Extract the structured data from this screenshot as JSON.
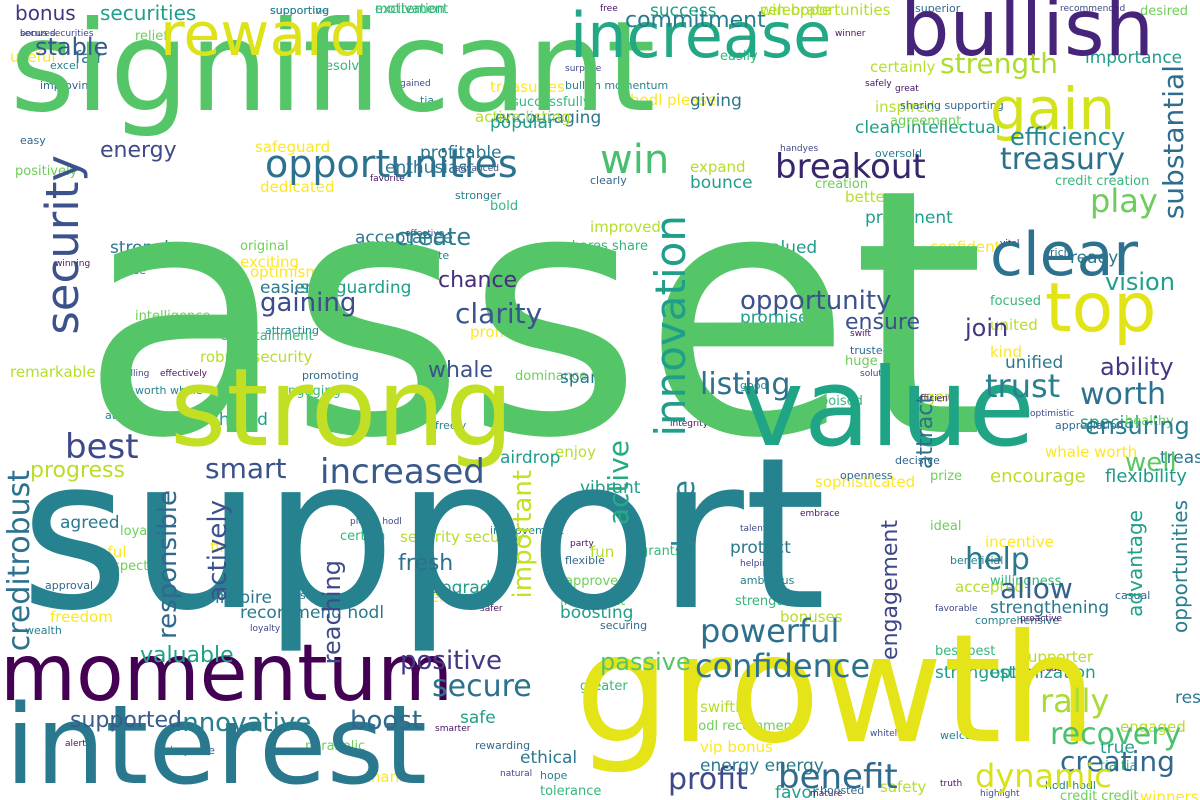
{
  "palette": {
    "purple": "#471164",
    "indigo": "#3e4989",
    "blue": "#31688e",
    "teal": "#26828e",
    "cyan": "#1f9e89",
    "green": "#35b779",
    "lime": "#6ece58",
    "yellowgreen": "#b5de2b",
    "yellow": "#e0e31a",
    "brightyellow": "#fde725"
  },
  "words": [
    {
      "text": "asset",
      "color": "#55c667"
    },
    {
      "text": "support",
      "color": "#26828e"
    },
    {
      "text": "significant",
      "color": "#55c667"
    },
    {
      "text": "growth",
      "color": "#e5e419"
    },
    {
      "text": "interest",
      "color": "#2a788e"
    },
    {
      "text": "strong",
      "color": "#c2df23"
    },
    {
      "text": "value",
      "color": "#20a486"
    },
    {
      "text": "momentum",
      "color": "#440154"
    },
    {
      "text": "bullish",
      "color": "#46247a"
    },
    {
      "text": "increase",
      "color": "#22a884"
    },
    {
      "text": "reward",
      "color": "#dde318"
    },
    {
      "text": "gain",
      "color": "#d2e21b"
    },
    {
      "text": "top",
      "color": "#e3e418"
    },
    {
      "text": "clear",
      "color": "#2c728e"
    },
    {
      "text": "innovation",
      "color": "#1f9f88"
    },
    {
      "text": "security",
      "color": "#3b528b"
    },
    {
      "text": "opportunities",
      "color": "#2c728e"
    },
    {
      "text": "win",
      "color": "#46c06f"
    },
    {
      "text": "breakout",
      "color": "#38256b"
    },
    {
      "text": "treasury",
      "color": "#2d708e"
    },
    {
      "text": "substantial",
      "color": "#2f6c8e"
    },
    {
      "text": "strength",
      "color": "#addc30"
    },
    {
      "text": "efficiency",
      "color": "#23898e"
    },
    {
      "text": "energy",
      "color": "#3e4a89"
    },
    {
      "text": "commitment",
      "color": "#297b8e"
    },
    {
      "text": "stable",
      "color": "#375a8c"
    },
    {
      "text": "bonus",
      "color": "#46337e"
    },
    {
      "text": "securities",
      "color": "#1fa088"
    },
    {
      "text": "opportunity",
      "color": "#3b528b"
    },
    {
      "text": "listing",
      "color": "#2d718e"
    },
    {
      "text": "gaining",
      "color": "#3e4c8a"
    },
    {
      "text": "clarity",
      "color": "#3a548c"
    },
    {
      "text": "chance",
      "color": "#472d7b"
    },
    {
      "text": "create",
      "color": "#287c8e"
    },
    {
      "text": "worth",
      "color": "#2c728e"
    },
    {
      "text": "trust",
      "color": "#26828e"
    },
    {
      "text": "play",
      "color": "#6ccd5a"
    },
    {
      "text": "vision",
      "color": "#1fa088"
    },
    {
      "text": "ability",
      "color": "#453882"
    },
    {
      "text": "smart",
      "color": "#3b528b"
    },
    {
      "text": "increased",
      "color": "#38598c"
    },
    {
      "text": "best",
      "color": "#3e4989"
    },
    {
      "text": "progress",
      "color": "#b8de29"
    },
    {
      "text": "creditrobust",
      "color": "#2c728e"
    },
    {
      "text": "responsible",
      "color": "#31688e"
    },
    {
      "text": "actively",
      "color": "#3b528b"
    },
    {
      "text": "help",
      "color": "#2a788e"
    },
    {
      "text": "allow",
      "color": "#33628d"
    },
    {
      "text": "powerful",
      "color": "#2d708e"
    },
    {
      "text": "confidence",
      "color": "#2c728e"
    },
    {
      "text": "rally",
      "color": "#a8db34"
    },
    {
      "text": "recovery",
      "color": "#4ac16d"
    },
    {
      "text": "creating",
      "color": "#31688e"
    },
    {
      "text": "dynamic",
      "color": "#d8e219"
    },
    {
      "text": "benefit",
      "color": "#2f6b8e"
    },
    {
      "text": "profit",
      "color": "#3e4989"
    },
    {
      "text": "secure",
      "color": "#2c728e"
    },
    {
      "text": "positive",
      "color": "#453781"
    },
    {
      "text": "boost",
      "color": "#31688e"
    },
    {
      "text": "innovative",
      "color": "#277f8e"
    },
    {
      "text": "supported",
      "color": "#375b8d"
    },
    {
      "text": "valuable",
      "color": "#1fa187"
    },
    {
      "text": "fresh",
      "color": "#2d708e"
    },
    {
      "text": "reaching",
      "color": "#3e4a89"
    },
    {
      "text": "important",
      "color": "#c5e021"
    },
    {
      "text": "share",
      "color": "#25858e"
    },
    {
      "text": "active",
      "color": "#25ab82"
    },
    {
      "text": "attract",
      "color": "#2d708e"
    },
    {
      "text": "well",
      "color": "#5ac864"
    },
    {
      "text": "ensuring",
      "color": "#287d8e"
    },
    {
      "text": "engagement",
      "color": "#3f4788"
    },
    {
      "text": "passive",
      "color": "#56c667"
    },
    {
      "text": "ensure",
      "color": "#3b528b"
    },
    {
      "text": "join",
      "color": "#443a83"
    },
    {
      "text": "whale",
      "color": "#3b528b"
    },
    {
      "text": "advantage",
      "color": "#1fa088"
    },
    {
      "text": "opportunities",
      "color": "#277e8e"
    },
    {
      "text": "encourage",
      "color": "#bade28"
    },
    {
      "text": "flexibility",
      "color": "#1f9a8a"
    }
  ],
  "small_words": [
    "bonus securities",
    "supporting",
    "excitement",
    "win opportunities",
    "success",
    "free",
    "superior",
    "desired",
    "useful",
    "fair",
    "recommended",
    "excel",
    "resolve",
    "certainly",
    "importance",
    "safely",
    "improving",
    "relief",
    "treasuries",
    "encouraging",
    "surprise",
    "bullish momentum",
    "easily",
    "inspired",
    "clean intellectual",
    "great",
    "sharing supporting",
    "agreement",
    "hodl please",
    "giving",
    "gained",
    "tia",
    "successfully",
    "active listing",
    "popular",
    "winner",
    "easy",
    "positively",
    "safeguard",
    "enthusiast",
    "handyes",
    "oversold",
    "credit creation",
    "expand",
    "bounce",
    "favorite",
    "clearly",
    "creation",
    "dedicated",
    "strongly",
    "advanced",
    "stronger",
    "bold",
    "better",
    "prominent",
    "vital",
    "rich",
    "original",
    "exciting",
    "acceptance",
    "effective",
    "validate",
    "shares share",
    "improved",
    "valued",
    "winning",
    "ease",
    "intelligence",
    "optimism",
    "easier",
    "halving",
    "attracting",
    "focused",
    "united",
    "promise",
    "swift",
    "trusted",
    "huge",
    "kind",
    "unified",
    "compelling",
    "worth whale",
    "engaging",
    "remarkable",
    "shared",
    "effectively",
    "promoting",
    "dominance",
    "promising",
    "spark",
    "solution",
    "good",
    "poised",
    "urgent",
    "special",
    "efficient",
    "appreciation",
    "healthy",
    "sophisticated",
    "ready",
    "optimistic",
    "freely",
    "attractive",
    "enjoy",
    "vibrant",
    "integrity",
    "openness",
    "prize",
    "whale worth",
    "treasury asset",
    "impressive",
    "attracted",
    "entertainment",
    "robust security",
    "safeguarding",
    "embrace",
    "decisive",
    "loyal",
    "fine",
    "inspire",
    "please hodl",
    "improvement",
    "certain",
    "security security",
    "upgrade",
    "party",
    "flexible",
    "approved",
    "engage",
    "protect",
    "helping",
    "ambitious",
    "strengthen",
    "bonuses",
    "boosting",
    "safer",
    "securing",
    "ideal",
    "incentive",
    "strengthening",
    "favorable",
    "comprehensive",
    "best best",
    "supporter",
    "strongest",
    "proactive",
    "approval",
    "truly",
    "freedom",
    "recommend hodl",
    "loyalty",
    "wealth",
    "greater",
    "swiftly",
    "safe",
    "smarter",
    "rewarding",
    "hodl recommend",
    "vip bonus",
    "energy energy",
    "highlight",
    "hodl hodl",
    "tia tia",
    "engaged",
    "true",
    "truth",
    "improve",
    "parabolic",
    "thank",
    "ethical",
    "natural",
    "hope",
    "tolerance",
    "safety",
    "favor",
    "mature",
    "boosted",
    "credit credit",
    "winners worth",
    "respectively",
    "whitelist",
    "welcome",
    "grants",
    "fun",
    "airdrop",
    "alert",
    "solve",
    "respect",
    "helpful",
    "agreed",
    "talent",
    "beneficial",
    "willingness",
    "accepted",
    "optimization",
    "peace",
    "casual",
    "intelligent",
    "confident",
    "profitable",
    "secured",
    "supportive",
    "motivation",
    "celebrate"
  ]
}
